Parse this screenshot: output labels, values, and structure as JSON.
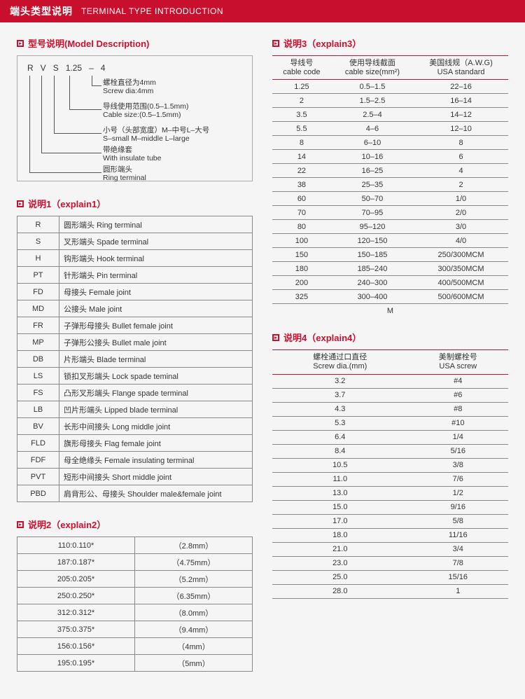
{
  "header": {
    "cn": "端头类型说明",
    "en": "TERMINAL TYPE INTRODUCTION"
  },
  "model": {
    "title": "型号说明(Model Description)",
    "code": [
      "R",
      "V",
      "S",
      "1.25",
      "–",
      "4"
    ],
    "descs": [
      {
        "cn": "螺栓直径为4mm",
        "en": "Screw dia:4mm"
      },
      {
        "cn": "导线使用范围(0.5–1.5mm)",
        "en": "Cable size:(0.5–1.5mm)"
      },
      {
        "cn": "小号（头部宽度）M–中号L–大号",
        "en": "S–small M–middle L–large"
      },
      {
        "cn": "带绝缘套",
        "en": "With insulate tube"
      },
      {
        "cn": "圆形端头",
        "en": "Ring terminal"
      }
    ]
  },
  "explain1": {
    "title": "说明1（explain1）",
    "rows": [
      [
        "R",
        "圆形端头 Ring terminal"
      ],
      [
        "S",
        "叉形端头 Spade terminal"
      ],
      [
        "H",
        "钩形端头 Hook terminal"
      ],
      [
        "PT",
        "针形端头 Pin terminal"
      ],
      [
        "FD",
        "母接头 Female joint"
      ],
      [
        "MD",
        "公接头 Male joint"
      ],
      [
        "FR",
        "子弹形母接头 Bullet female joint"
      ],
      [
        "MP",
        "子弹形公接头 Bullet male joint"
      ],
      [
        "DB",
        "片形端头 Blade terminal"
      ],
      [
        "LS",
        "锁扣叉形端头 Lock spade teminal"
      ],
      [
        "FS",
        "凸形叉形端头 Flange spade terminal"
      ],
      [
        "LB",
        "凹片形端头 Lipped blade terminal"
      ],
      [
        "BV",
        "长形中间接头 Long middle joint"
      ],
      [
        "FLD",
        "旗形母接头 Flag female joint"
      ],
      [
        "FDF",
        "母全绝缘头 Female insulating terminal"
      ],
      [
        "PVT",
        "短形中间接头 Short middle joint"
      ],
      [
        "PBD",
        "肩背形公、母接头 Shoulder male&female joint"
      ]
    ]
  },
  "explain2": {
    "title": "说明2（explain2）",
    "rows": [
      [
        "110:0.110*",
        "（2.8mm）"
      ],
      [
        "187:0.187*",
        "（4.75mm）"
      ],
      [
        "205:0.205*",
        "（5.2mm）"
      ],
      [
        "250:0.250*",
        "（6.35mm）"
      ],
      [
        "312:0.312*",
        "（8.0mm）"
      ],
      [
        "375:0.375*",
        "（9.4mm）"
      ],
      [
        "156:0.156*",
        "（4mm）"
      ],
      [
        "195:0.195*",
        "（5mm）"
      ]
    ]
  },
  "explain3": {
    "title": "说明3（explain3）",
    "headers": [
      {
        "cn": "导线号",
        "en": "cable code"
      },
      {
        "cn": "使用导线截面",
        "en": "cable size(mm²)"
      },
      {
        "cn": "美国线规（A.W.G)",
        "en": "USA standard"
      }
    ],
    "rows": [
      [
        "1.25",
        "0.5–1.5",
        "22–16"
      ],
      [
        "2",
        "1.5–2.5",
        "16–14"
      ],
      [
        "3.5",
        "2.5–4",
        "14–12"
      ],
      [
        "5.5",
        "4–6",
        "12–10"
      ],
      [
        "8",
        "6–10",
        "8"
      ],
      [
        "14",
        "10–16",
        "6"
      ],
      [
        "22",
        "16–25",
        "4"
      ],
      [
        "38",
        "25–35",
        "2"
      ],
      [
        "60",
        "50–70",
        "1/0"
      ],
      [
        "70",
        "70–95",
        "2/0"
      ],
      [
        "80",
        "95–120",
        "3/0"
      ],
      [
        "100",
        "120–150",
        "4/0"
      ],
      [
        "150",
        "150–185",
        "250/300MCM"
      ],
      [
        "180",
        "185–240",
        "300/350MCM"
      ],
      [
        "200",
        "240–300",
        "400/500MCM"
      ],
      [
        "325",
        "300–400",
        "500/600MCM"
      ]
    ],
    "footnote": "M"
  },
  "explain4": {
    "title": "说明4（explain4）",
    "headers": [
      {
        "cn": "螺栓通过口直径",
        "en": "Screw dia.(mm)"
      },
      {
        "cn": "美制螺栓号",
        "en": "USA screw"
      }
    ],
    "rows": [
      [
        "3.2",
        "#4"
      ],
      [
        "3.7",
        "#6"
      ],
      [
        "4.3",
        "#8"
      ],
      [
        "5.3",
        "#10"
      ],
      [
        "6.4",
        "1/4"
      ],
      [
        "8.4",
        "5/16"
      ],
      [
        "10.5",
        "3/8"
      ],
      [
        "11.0",
        "7/6"
      ],
      [
        "13.0",
        "1/2"
      ],
      [
        "15.0",
        "9/16"
      ],
      [
        "17.0",
        "5/8"
      ],
      [
        "18.0",
        "11/16"
      ],
      [
        "21.0",
        "3/4"
      ],
      [
        "23.0",
        "7/8"
      ],
      [
        "25.0",
        "15/16"
      ],
      [
        "28.0",
        "1"
      ]
    ]
  },
  "colors": {
    "brand": "#c8102e",
    "border": "#888"
  }
}
